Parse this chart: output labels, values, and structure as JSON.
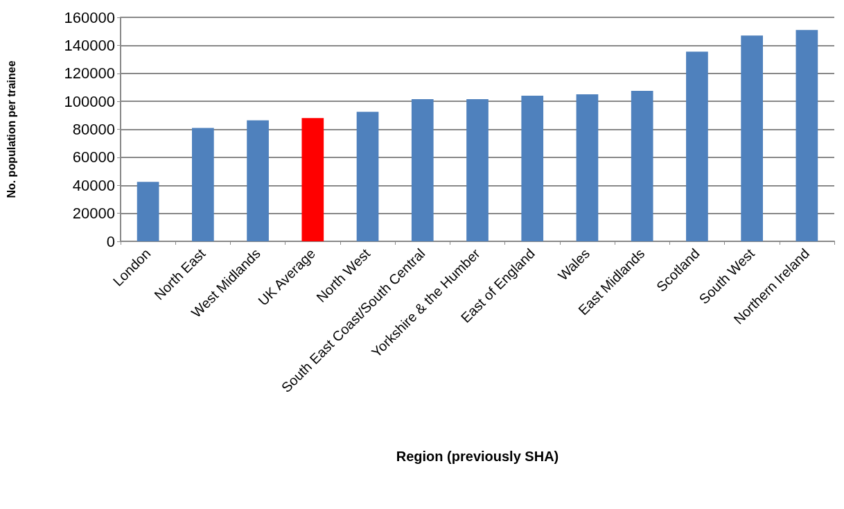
{
  "chart_data": {
    "type": "bar",
    "xlabel": "Region (previously SHA)",
    "ylabel": "No. population per trainee",
    "categories": [
      "London",
      "North East",
      "West Midlands",
      "UK Average",
      "North West",
      "South East Coast/South Central",
      "Yorkshire & the Humber",
      "East of England",
      "Wales",
      "East Midlands",
      "Scotland",
      "South West",
      "Northern Ireland"
    ],
    "values": [
      42500,
      81000,
      86500,
      88000,
      92500,
      101500,
      101500,
      104000,
      105000,
      107500,
      135500,
      147000,
      151000
    ],
    "colors": [
      "#4f81bd",
      "#4f81bd",
      "#4f81bd",
      "#ff0000",
      "#4f81bd",
      "#4f81bd",
      "#4f81bd",
      "#4f81bd",
      "#4f81bd",
      "#4f81bd",
      "#4f81bd",
      "#4f81bd",
      "#4f81bd"
    ],
    "ylim": [
      0,
      160000
    ],
    "yticks": [
      0,
      20000,
      40000,
      60000,
      80000,
      100000,
      120000,
      140000,
      160000
    ],
    "grid": "y"
  }
}
